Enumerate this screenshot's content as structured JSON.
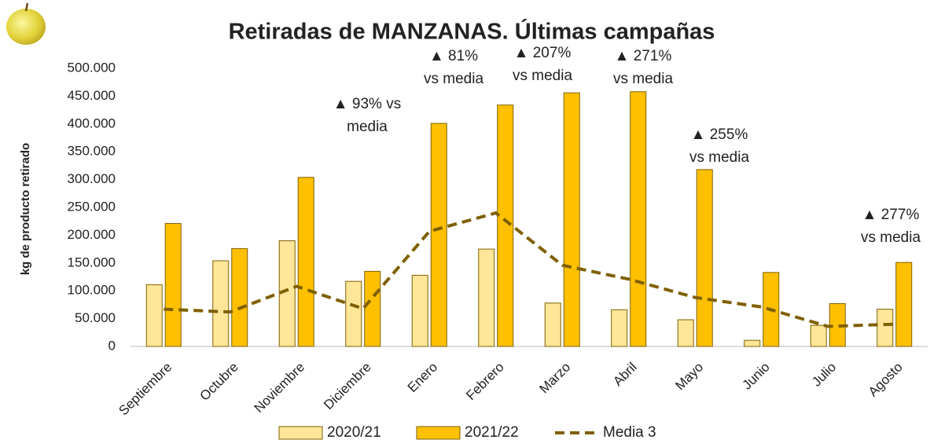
{
  "chart_data": {
    "type": "bar",
    "title": "Retiradas de MANZANAS. Últimas campañas",
    "y_label": "kg de producto retirado",
    "categories": [
      "Septiembre",
      "Octubre",
      "Noviembre",
      "Diciembre",
      "Enero",
      "Febrero",
      "Marzo",
      "Abril",
      "Mayo",
      "Junio",
      "Julio",
      "Agosto"
    ],
    "series": [
      {
        "name": "2020/21",
        "color": "#ffe699",
        "values": [
          111000,
          154000,
          190000,
          117000,
          128000,
          175000,
          78000,
          66000,
          48000,
          11000,
          38000,
          67000
        ]
      },
      {
        "name": "2021/22",
        "color": "#ffc000",
        "values": [
          221000,
          176000,
          304000,
          135000,
          401000,
          434000,
          456000,
          458000,
          318000,
          133000,
          77000,
          151000
        ]
      },
      {
        "name": "Media 3",
        "type": "line",
        "color": "#7f6000",
        "values": [
          67000,
          62000,
          108000,
          68000,
          207000,
          240000,
          146000,
          121000,
          88000,
          71000,
          36000,
          40000
        ]
      }
    ],
    "ylim": [
      0,
      500000
    ],
    "yticks": [
      0,
      {
        "value": 50000,
        "label": "50.000"
      },
      {
        "value": 100000,
        "label": "100.000"
      },
      {
        "value": 150000,
        "label": "150.000"
      },
      {
        "value": 200000,
        "label": "200.000"
      },
      {
        "value": 250000,
        "label": "250.000"
      },
      {
        "value": 300000,
        "label": "300.000"
      },
      {
        "value": 350000,
        "label": "350.000"
      },
      {
        "value": 400000,
        "label": "400.000"
      },
      {
        "value": 450000,
        "label": "450.000"
      },
      {
        "value": 500000,
        "label": "500.000"
      }
    ],
    "grid": false,
    "legend": "bottom",
    "annotations": [
      {
        "lines": [
          "▲ 93% vs",
          "media"
        ]
      },
      {
        "lines": [
          "▲ 81%",
          "vs media"
        ]
      },
      {
        "lines": [
          "▲ 207%",
          "vs media"
        ]
      },
      {
        "lines": [
          "▲ 271%",
          "vs media"
        ]
      },
      {
        "lines": [
          "▲ 255%",
          "vs media"
        ]
      },
      {
        "lines": [
          "▲ 277%",
          "vs media"
        ]
      }
    ]
  }
}
